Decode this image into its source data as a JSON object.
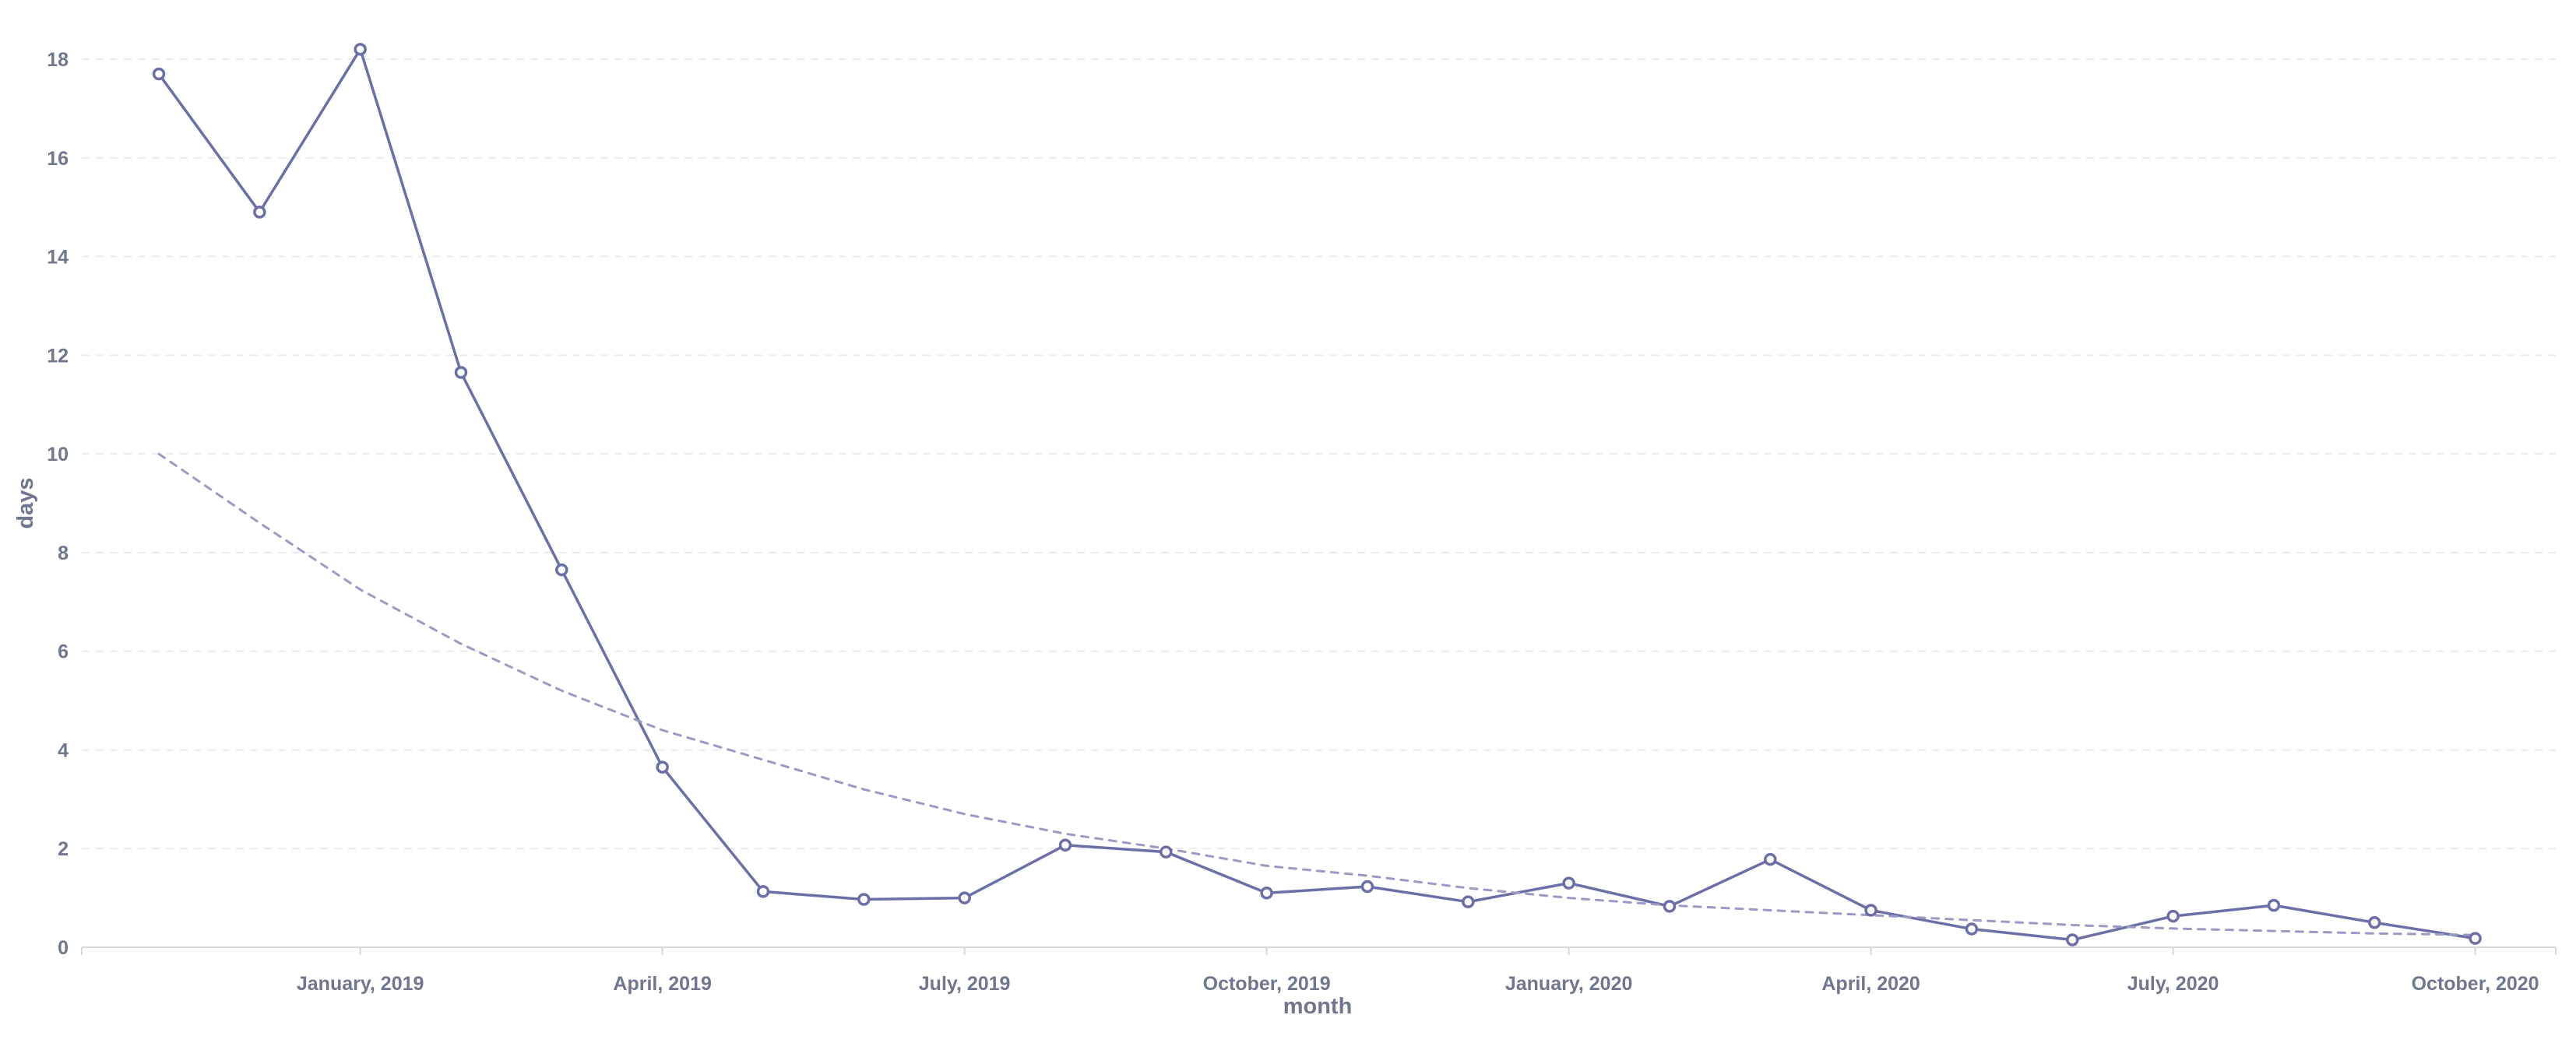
{
  "chart_data": {
    "type": "line",
    "title": "",
    "xlabel": "month",
    "ylabel": "days",
    "ylim": [
      0,
      18
    ],
    "y_ticks": [
      "0",
      "2",
      "4",
      "6",
      "8",
      "10",
      "12",
      "14",
      "16",
      "18"
    ],
    "x_ticks": [
      "January, 2019",
      "April, 2019",
      "July, 2019",
      "October, 2019",
      "January, 2020",
      "April, 2020",
      "July, 2020",
      "October, 2020"
    ],
    "grid": "horizontal dashed",
    "x": [
      "2018-11",
      "2018-12",
      "2019-01",
      "2019-02",
      "2019-03",
      "2019-04",
      "2019-05",
      "2019-06",
      "2019-07",
      "2019-08",
      "2019-09",
      "2019-10",
      "2019-11",
      "2019-12",
      "2020-01",
      "2020-02",
      "2020-03",
      "2020-04",
      "2020-05",
      "2020-06",
      "2020-07",
      "2020-08",
      "2020-09",
      "2020-10"
    ],
    "series": [
      {
        "values": [
          17.7,
          14.9,
          18.2,
          11.65,
          7.65,
          3.65,
          1.13,
          0.97,
          1.0,
          2.07,
          1.93,
          1.1,
          1.23,
          0.92,
          1.3,
          0.83,
          1.78,
          0.75,
          0.37,
          0.15,
          0.63,
          0.85,
          0.5,
          0.18
        ],
        "color": "#6b6fa8",
        "style": "solid",
        "markers": "hollow-circle"
      },
      {
        "values": [
          10.0,
          8.6,
          7.25,
          6.15,
          5.2,
          4.4,
          3.8,
          3.2,
          2.7,
          2.3,
          2.0,
          1.65,
          1.45,
          1.2,
          1.0,
          0.85,
          0.75,
          0.65,
          0.55,
          0.45,
          0.38,
          0.33,
          0.28,
          0.25
        ],
        "color": "#9a9ac4",
        "style": "dashed",
        "markers": "none"
      }
    ],
    "colors": {
      "tick_text": "#6f768f",
      "axis_title": "#6f768f",
      "grid": "#e9eaee",
      "axis_line": "#d6d8de"
    }
  }
}
